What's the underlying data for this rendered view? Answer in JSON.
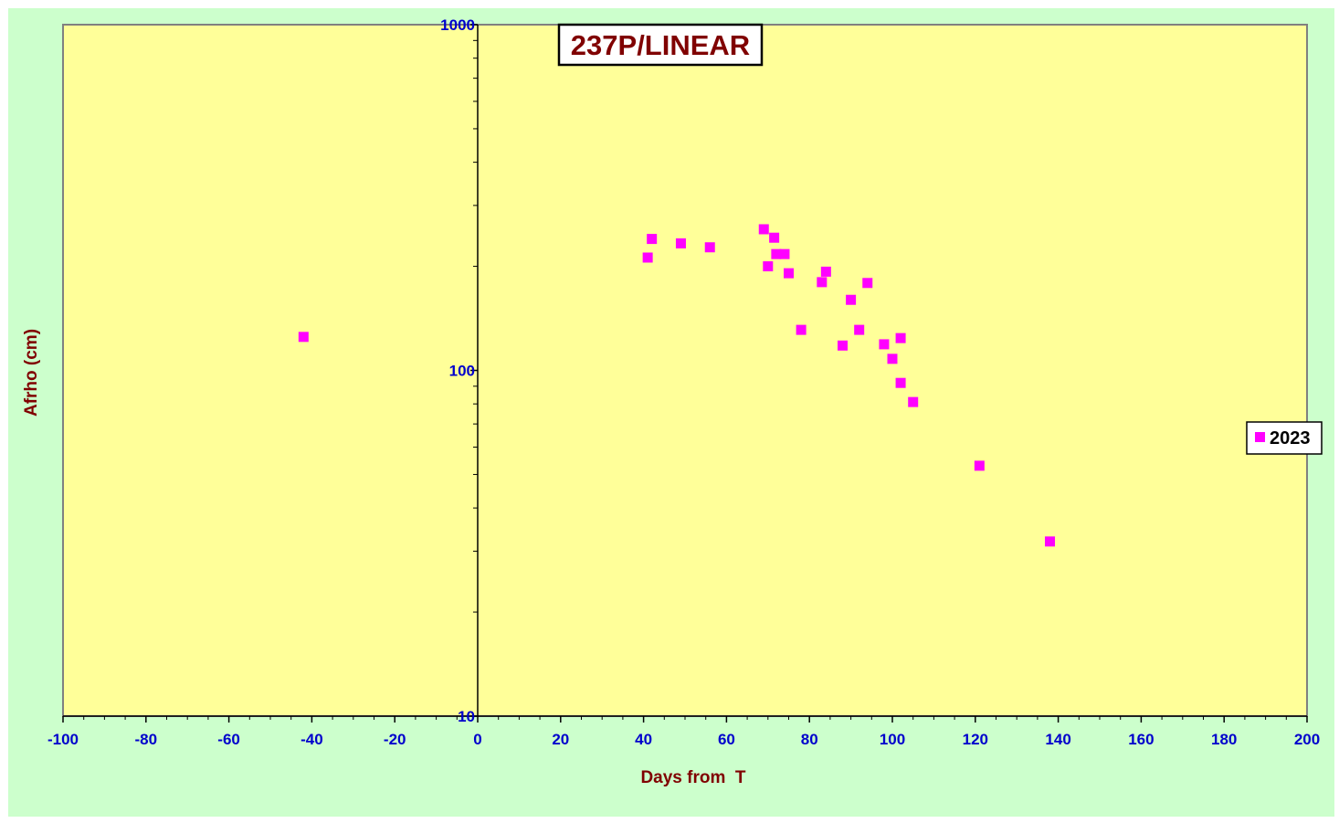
{
  "chart_data": {
    "type": "scatter",
    "title": "237P/LINEAR",
    "xlabel": "Days from  T",
    "ylabel": "Afrho (cm)",
    "xlim": [
      -100,
      200
    ],
    "ylim": [
      10,
      1000
    ],
    "y_scale": "log",
    "x_ticks": [
      "-100",
      "-80",
      "-60",
      "-40",
      "-20",
      "0",
      "20",
      "40",
      "60",
      "80",
      "100",
      "120",
      "140",
      "160",
      "180",
      "200"
    ],
    "y_ticks": [
      "10",
      "100",
      "1000"
    ],
    "grid": false,
    "legend_position": "right",
    "series": [
      {
        "name": "2023",
        "color": "#ff00ff",
        "marker": "square",
        "points": [
          [
            -42,
            125
          ],
          [
            41,
            212
          ],
          [
            42,
            240
          ],
          [
            49,
            233
          ],
          [
            56,
            227
          ],
          [
            69,
            256
          ],
          [
            70,
            200
          ],
          [
            71.5,
            242
          ],
          [
            72,
            217
          ],
          [
            74,
            217
          ],
          [
            75,
            191
          ],
          [
            78,
            131
          ],
          [
            83,
            180
          ],
          [
            84,
            193
          ],
          [
            88,
            118
          ],
          [
            90,
            160
          ],
          [
            92,
            131
          ],
          [
            94,
            179
          ],
          [
            98,
            119
          ],
          [
            100,
            108
          ],
          [
            102,
            124
          ],
          [
            102,
            92
          ],
          [
            105,
            81
          ],
          [
            121,
            53
          ],
          [
            138,
            32
          ]
        ]
      }
    ],
    "colors": {
      "plot_background": "#ffff99",
      "chart_background": "#ccffcc",
      "tick_label": "#0000cc",
      "title_text": "#800000"
    }
  }
}
